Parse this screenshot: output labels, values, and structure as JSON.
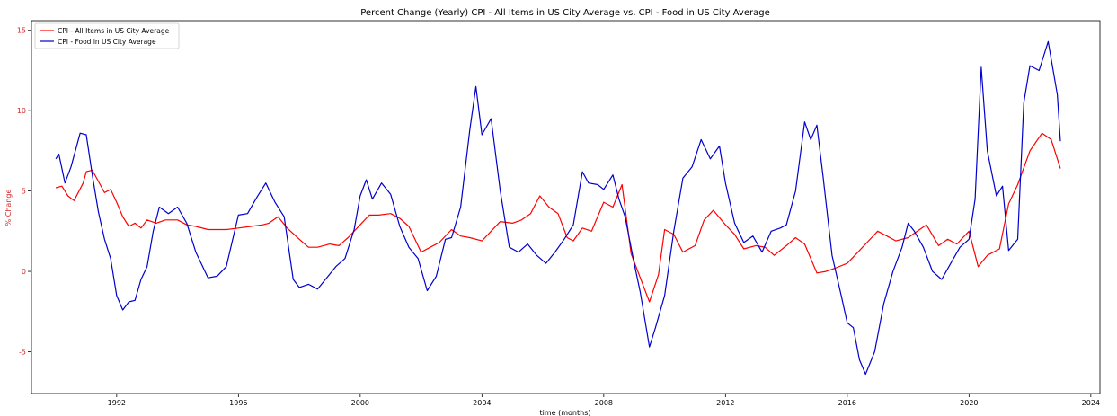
{
  "chart_data": {
    "type": "line",
    "title": "Percent Change (Yearly) CPI - All Items in US City Average vs. CPI - Food in US City Average",
    "xlabel": "time (months)",
    "ylabel": "% Change",
    "xlim": [
      1989.2,
      2024.3
    ],
    "ylim": [
      -7.6,
      15.6
    ],
    "x_ticks": [
      1992,
      1996,
      2000,
      2004,
      2008,
      2012,
      2016,
      2020,
      2024
    ],
    "x_tick_labels": [
      "1992",
      "1996",
      "2000",
      "2004",
      "2008",
      "2012",
      "2016",
      "2020",
      "2024"
    ],
    "y_ticks": [
      -5,
      0,
      5,
      10,
      15
    ],
    "y_tick_labels": [
      "-5",
      "0",
      "5",
      "10",
      "15"
    ],
    "grid": false,
    "legend_position": "top-left",
    "series": [
      {
        "name": "CPI - All Items in US City Average",
        "color": "#ff0000",
        "points": [
          [
            1990.0,
            5.2
          ],
          [
            1990.2,
            5.3
          ],
          [
            1990.4,
            4.7
          ],
          [
            1990.6,
            4.4
          ],
          [
            1990.9,
            5.5
          ],
          [
            1991.0,
            6.2
          ],
          [
            1991.2,
            6.3
          ],
          [
            1991.4,
            5.6
          ],
          [
            1991.6,
            4.9
          ],
          [
            1991.8,
            5.1
          ],
          [
            1992.0,
            4.3
          ],
          [
            1992.2,
            3.4
          ],
          [
            1992.4,
            2.8
          ],
          [
            1992.6,
            3.0
          ],
          [
            1992.8,
            2.7
          ],
          [
            1993.0,
            3.2
          ],
          [
            1993.3,
            3.0
          ],
          [
            1993.6,
            3.2
          ],
          [
            1994.0,
            3.2
          ],
          [
            1994.3,
            2.9
          ],
          [
            1994.6,
            2.8
          ],
          [
            1995.0,
            2.6
          ],
          [
            1995.3,
            2.6
          ],
          [
            1995.6,
            2.6
          ],
          [
            1996.0,
            2.7
          ],
          [
            1996.4,
            2.8
          ],
          [
            1996.8,
            2.9
          ],
          [
            1997.0,
            3.0
          ],
          [
            1997.3,
            3.4
          ],
          [
            1997.6,
            2.7
          ],
          [
            1998.0,
            2.0
          ],
          [
            1998.3,
            1.5
          ],
          [
            1998.6,
            1.5
          ],
          [
            1999.0,
            1.7
          ],
          [
            1999.3,
            1.6
          ],
          [
            1999.6,
            2.1
          ],
          [
            2000.0,
            2.9
          ],
          [
            2000.3,
            3.5
          ],
          [
            2000.6,
            3.5
          ],
          [
            2001.0,
            3.6
          ],
          [
            2001.3,
            3.3
          ],
          [
            2001.6,
            2.8
          ],
          [
            2002.0,
            1.2
          ],
          [
            2002.3,
            1.5
          ],
          [
            2002.6,
            1.8
          ],
          [
            2003.0,
            2.6
          ],
          [
            2003.3,
            2.2
          ],
          [
            2003.6,
            2.1
          ],
          [
            2004.0,
            1.9
          ],
          [
            2004.3,
            2.5
          ],
          [
            2004.6,
            3.1
          ],
          [
            2005.0,
            3.0
          ],
          [
            2005.3,
            3.2
          ],
          [
            2005.6,
            3.6
          ],
          [
            2005.9,
            4.7
          ],
          [
            2006.2,
            4.0
          ],
          [
            2006.5,
            3.6
          ],
          [
            2006.8,
            2.1
          ],
          [
            2007.0,
            1.9
          ],
          [
            2007.3,
            2.7
          ],
          [
            2007.6,
            2.5
          ],
          [
            2008.0,
            4.3
          ],
          [
            2008.3,
            4.0
          ],
          [
            2008.6,
            5.4
          ],
          [
            2008.9,
            1.1
          ],
          [
            2009.2,
            -0.4
          ],
          [
            2009.5,
            -1.9
          ],
          [
            2009.8,
            -0.2
          ],
          [
            2010.0,
            2.6
          ],
          [
            2010.3,
            2.3
          ],
          [
            2010.6,
            1.2
          ],
          [
            2011.0,
            1.6
          ],
          [
            2011.3,
            3.2
          ],
          [
            2011.6,
            3.8
          ],
          [
            2012.0,
            2.9
          ],
          [
            2012.3,
            2.3
          ],
          [
            2012.6,
            1.4
          ],
          [
            2013.0,
            1.6
          ],
          [
            2013.3,
            1.5
          ],
          [
            2013.6,
            1.0
          ],
          [
            2014.0,
            1.6
          ],
          [
            2014.3,
            2.1
          ],
          [
            2014.6,
            1.7
          ],
          [
            2015.0,
            -0.1
          ],
          [
            2015.3,
            0.0
          ],
          [
            2015.6,
            0.2
          ],
          [
            2016.0,
            0.5
          ],
          [
            2016.3,
            1.1
          ],
          [
            2016.6,
            1.7
          ],
          [
            2017.0,
            2.5
          ],
          [
            2017.3,
            2.2
          ],
          [
            2017.6,
            1.9
          ],
          [
            2018.0,
            2.1
          ],
          [
            2018.3,
            2.5
          ],
          [
            2018.6,
            2.9
          ],
          [
            2019.0,
            1.6
          ],
          [
            2019.3,
            2.0
          ],
          [
            2019.6,
            1.7
          ],
          [
            2020.0,
            2.5
          ],
          [
            2020.3,
            0.3
          ],
          [
            2020.6,
            1.0
          ],
          [
            2021.0,
            1.4
          ],
          [
            2021.3,
            4.2
          ],
          [
            2021.6,
            5.4
          ],
          [
            2022.0,
            7.5
          ],
          [
            2022.4,
            8.6
          ],
          [
            2022.7,
            8.2
          ],
          [
            2023.0,
            6.4
          ]
        ]
      },
      {
        "name": "CPI - Food in US City Average",
        "color": "#0000cc",
        "points": [
          [
            1990.0,
            7.0
          ],
          [
            1990.1,
            7.3
          ],
          [
            1990.3,
            5.5
          ],
          [
            1990.5,
            6.5
          ],
          [
            1990.8,
            8.6
          ],
          [
            1991.0,
            8.5
          ],
          [
            1991.2,
            6.0
          ],
          [
            1991.4,
            3.7
          ],
          [
            1991.6,
            2.0
          ],
          [
            1991.8,
            0.8
          ],
          [
            1992.0,
            -1.5
          ],
          [
            1992.2,
            -2.4
          ],
          [
            1992.4,
            -1.9
          ],
          [
            1992.6,
            -1.8
          ],
          [
            1992.8,
            -0.5
          ],
          [
            1993.0,
            0.3
          ],
          [
            1993.2,
            2.5
          ],
          [
            1993.4,
            4.0
          ],
          [
            1993.7,
            3.6
          ],
          [
            1994.0,
            4.0
          ],
          [
            1994.3,
            3.0
          ],
          [
            1994.6,
            1.2
          ],
          [
            1995.0,
            -0.4
          ],
          [
            1995.3,
            -0.3
          ],
          [
            1995.6,
            0.3
          ],
          [
            1996.0,
            3.5
          ],
          [
            1996.3,
            3.6
          ],
          [
            1996.6,
            4.6
          ],
          [
            1996.9,
            5.5
          ],
          [
            1997.2,
            4.3
          ],
          [
            1997.5,
            3.4
          ],
          [
            1997.8,
            -0.5
          ],
          [
            1998.0,
            -1.0
          ],
          [
            1998.3,
            -0.8
          ],
          [
            1998.6,
            -1.1
          ],
          [
            1998.9,
            -0.4
          ],
          [
            1999.2,
            0.3
          ],
          [
            1999.5,
            0.8
          ],
          [
            1999.8,
            2.6
          ],
          [
            2000.0,
            4.7
          ],
          [
            2000.2,
            5.7
          ],
          [
            2000.4,
            4.5
          ],
          [
            2000.7,
            5.5
          ],
          [
            2001.0,
            4.8
          ],
          [
            2001.3,
            2.8
          ],
          [
            2001.6,
            1.5
          ],
          [
            2001.9,
            0.8
          ],
          [
            2002.2,
            -1.2
          ],
          [
            2002.5,
            -0.3
          ],
          [
            2002.8,
            2.0
          ],
          [
            2003.0,
            2.1
          ],
          [
            2003.3,
            4.0
          ],
          [
            2003.6,
            8.8
          ],
          [
            2003.8,
            11.5
          ],
          [
            2004.0,
            8.5
          ],
          [
            2004.3,
            9.5
          ],
          [
            2004.6,
            5.0
          ],
          [
            2004.9,
            1.5
          ],
          [
            2005.2,
            1.2
          ],
          [
            2005.5,
            1.7
          ],
          [
            2005.8,
            1.0
          ],
          [
            2006.1,
            0.5
          ],
          [
            2006.4,
            1.2
          ],
          [
            2006.7,
            2.0
          ],
          [
            2007.0,
            2.9
          ],
          [
            2007.3,
            6.2
          ],
          [
            2007.5,
            5.5
          ],
          [
            2007.8,
            5.4
          ],
          [
            2008.0,
            5.1
          ],
          [
            2008.3,
            6.0
          ],
          [
            2008.5,
            4.5
          ],
          [
            2008.7,
            3.4
          ],
          [
            2009.0,
            0.5
          ],
          [
            2009.2,
            -1.3
          ],
          [
            2009.5,
            -4.7
          ],
          [
            2009.7,
            -3.5
          ],
          [
            2010.0,
            -1.5
          ],
          [
            2010.3,
            2.5
          ],
          [
            2010.6,
            5.8
          ],
          [
            2010.9,
            6.5
          ],
          [
            2011.2,
            8.2
          ],
          [
            2011.5,
            7.0
          ],
          [
            2011.8,
            7.8
          ],
          [
            2012.0,
            5.5
          ],
          [
            2012.3,
            3.0
          ],
          [
            2012.6,
            1.8
          ],
          [
            2012.9,
            2.2
          ],
          [
            2013.2,
            1.2
          ],
          [
            2013.5,
            2.5
          ],
          [
            2013.8,
            2.7
          ],
          [
            2014.0,
            2.9
          ],
          [
            2014.3,
            5.0
          ],
          [
            2014.6,
            9.3
          ],
          [
            2014.8,
            8.2
          ],
          [
            2015.0,
            9.1
          ],
          [
            2015.2,
            6.0
          ],
          [
            2015.5,
            1.0
          ],
          [
            2015.8,
            -1.5
          ],
          [
            2016.0,
            -3.2
          ],
          [
            2016.2,
            -3.5
          ],
          [
            2016.4,
            -5.5
          ],
          [
            2016.6,
            -6.4
          ],
          [
            2016.9,
            -5.0
          ],
          [
            2017.2,
            -2.0
          ],
          [
            2017.5,
            0.0
          ],
          [
            2017.8,
            1.5
          ],
          [
            2018.0,
            3.0
          ],
          [
            2018.2,
            2.5
          ],
          [
            2018.5,
            1.5
          ],
          [
            2018.8,
            0.0
          ],
          [
            2019.1,
            -0.5
          ],
          [
            2019.4,
            0.5
          ],
          [
            2019.7,
            1.5
          ],
          [
            2020.0,
            2.0
          ],
          [
            2020.2,
            4.5
          ],
          [
            2020.4,
            12.7
          ],
          [
            2020.6,
            7.5
          ],
          [
            2020.9,
            4.7
          ],
          [
            2021.1,
            5.3
          ],
          [
            2021.3,
            1.3
          ],
          [
            2021.6,
            2.0
          ],
          [
            2021.8,
            10.5
          ],
          [
            2022.0,
            12.8
          ],
          [
            2022.3,
            12.5
          ],
          [
            2022.6,
            14.3
          ],
          [
            2022.9,
            11.0
          ],
          [
            2023.0,
            8.1
          ]
        ]
      }
    ]
  }
}
